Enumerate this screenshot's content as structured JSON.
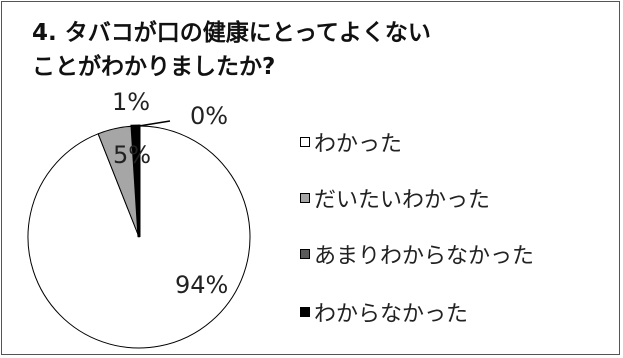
{
  "chart_data": {
    "type": "pie",
    "title": [
      "4. タバコが口の健康にとってよくない",
      "ことがわかりましたか?"
    ],
    "categories": [
      "わかった",
      "だいたいわかった",
      "あまりわからなかった",
      "わからなかった"
    ],
    "values": [
      94,
      5,
      1,
      0
    ],
    "labels": [
      "94%",
      "5%",
      "1%",
      "0%"
    ],
    "colors": [
      "#ffffff",
      "#a6a6a6",
      "#595959",
      "#000000"
    ],
    "legend_position": "right"
  }
}
